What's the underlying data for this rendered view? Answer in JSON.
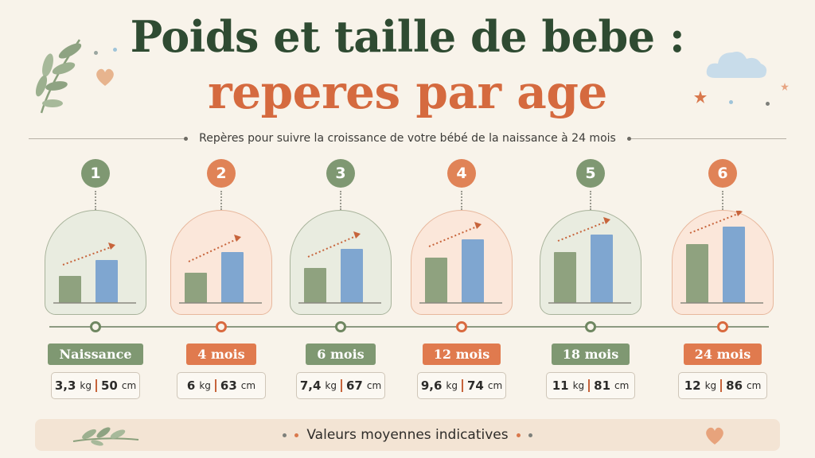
{
  "title_line1": "Poids et taille de bebe :",
  "title_line2": "reperes par age",
  "subtitle": "Repères pour suivre la croissance de votre bébé de la naissance à 24 mois",
  "stages": [
    {
      "number": "1",
      "label": "Naissance",
      "weight": "3,3",
      "weight_unit": "kg",
      "height": "50",
      "height_unit": "cm",
      "theme": "green"
    },
    {
      "number": "2",
      "label": "4 mois",
      "weight": "6",
      "weight_unit": "kg",
      "height": "63",
      "height_unit": "cm",
      "theme": "orange"
    },
    {
      "number": "3",
      "label": "6 mois",
      "weight": "7,4",
      "weight_unit": "kg",
      "height": "67",
      "height_unit": "cm",
      "theme": "green"
    },
    {
      "number": "4",
      "label": "12 mois",
      "weight": "9,6",
      "weight_unit": "kg",
      "height": "74",
      "height_unit": "cm",
      "theme": "orange"
    },
    {
      "number": "5",
      "label": "18 mois",
      "weight": "11",
      "weight_unit": "kg",
      "height": "81",
      "height_unit": "cm",
      "theme": "green"
    },
    {
      "number": "6",
      "label": "24 mois",
      "weight": "12",
      "weight_unit": "kg",
      "height": "86",
      "height_unit": "cm",
      "theme": "orange"
    }
  ],
  "footer": "Valeurs moyennes indicatives",
  "colors": {
    "green": "#7f9872",
    "orange": "#e07a4e",
    "bar_green": "#8fa27f",
    "bar_blue": "#7fa6d0",
    "title_dark": "#2f4b32",
    "title_orange": "#d56a3f"
  },
  "icons": [
    "leaf-branch-icon",
    "heart-icon",
    "cloud-icon",
    "star-icon",
    "growth-arrow-icon"
  ]
}
